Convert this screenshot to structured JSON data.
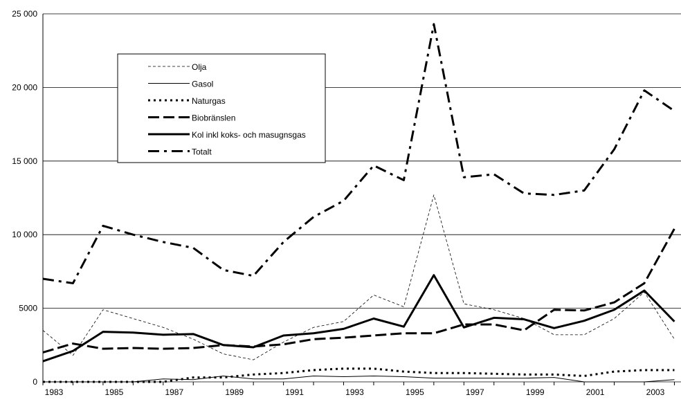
{
  "chart_data": {
    "type": "line",
    "categories": [
      "1983",
      null,
      "1985",
      null,
      "1987",
      null,
      "1989",
      null,
      "1991",
      null,
      "1993",
      null,
      "1995",
      null,
      "1997",
      null,
      "1999",
      null,
      "2001",
      null,
      "2003",
      null
    ],
    "ylim": [
      0,
      25000
    ],
    "yticks": [
      0,
      5000,
      {
        "value": 10000,
        "label": "10 000"
      },
      {
        "value": 15000,
        "label": "15 000"
      },
      {
        "value": 20000,
        "label": "20 000"
      },
      {
        "value": 25000,
        "label": "25 000"
      }
    ],
    "grid": true,
    "legend": "upper-left",
    "series": [
      {
        "name": "Olja",
        "color": "#000000",
        "values": [
          3500,
          1800,
          4900,
          4300,
          3700,
          2900,
          1900,
          1500,
          2700,
          3700,
          4100,
          5900,
          5100,
          12700,
          5300,
          4900,
          4300,
          3200,
          3200,
          4300,
          6100,
          2900
        ]
      },
      {
        "name": "Gasol",
        "color": "#000000",
        "values": [
          0,
          0,
          0,
          0,
          200,
          150,
          400,
          200,
          200,
          400,
          350,
          400,
          350,
          250,
          250,
          250,
          250,
          300,
          0,
          0,
          0,
          150
        ]
      },
      {
        "name": "Naturgas",
        "color": "#000000",
        "values": [
          0,
          0,
          0,
          0,
          0,
          300,
          300,
          500,
          600,
          800,
          900,
          900,
          700,
          600,
          600,
          550,
          500,
          500,
          400,
          700,
          800,
          800
        ]
      },
      {
        "name": "Biobränslen",
        "color": "#000000",
        "values": [
          2000,
          2600,
          2250,
          2300,
          2250,
          2300,
          2500,
          2400,
          2550,
          2900,
          3000,
          3150,
          3300,
          3300,
          3900,
          3900,
          3500,
          4900,
          4850,
          5400,
          6700,
          10400
        ]
      },
      {
        "name": "Kol inkl koks- och masugnsgas",
        "color": "#000000",
        "values": [
          1400,
          2100,
          3400,
          3350,
          3200,
          3250,
          2500,
          2350,
          3150,
          3300,
          3600,
          4300,
          3750,
          7250,
          3700,
          4350,
          4250,
          3650,
          4150,
          4900,
          6200,
          4100
        ]
      },
      {
        "name": "Totalt",
        "color": "#000000",
        "values": [
          7000,
          6700,
          10600,
          10000,
          9500,
          9100,
          7600,
          7200,
          9500,
          11200,
          12300,
          14700,
          13700,
          24300,
          13900,
          14100,
          12800,
          12700,
          13000,
          15800,
          19800,
          18400
        ]
      }
    ]
  }
}
